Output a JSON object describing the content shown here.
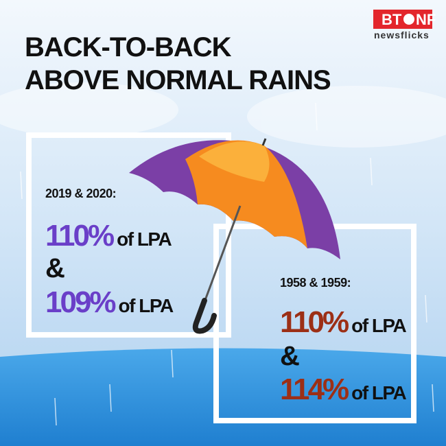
{
  "logo": {
    "left": "BT",
    "right": "NF",
    "tagline": "newsflicks"
  },
  "title": [
    "BACK-TO-BACK",
    "ABOVE NORMAL RAINS"
  ],
  "panels": [
    {
      "label": "2019 & 2020:",
      "color": "#6a3fc8",
      "joiner": "&",
      "items": [
        {
          "figure": "110%",
          "unit": "of LPA"
        },
        {
          "figure": "109%",
          "unit": "of LPA"
        }
      ]
    },
    {
      "label": "1958 & 1959:",
      "color": "#9c2f16",
      "joiner": "&",
      "items": [
        {
          "figure": "110%",
          "unit": "of LPA"
        },
        {
          "figure": "114%",
          "unit": "of LPA"
        }
      ]
    }
  ]
}
